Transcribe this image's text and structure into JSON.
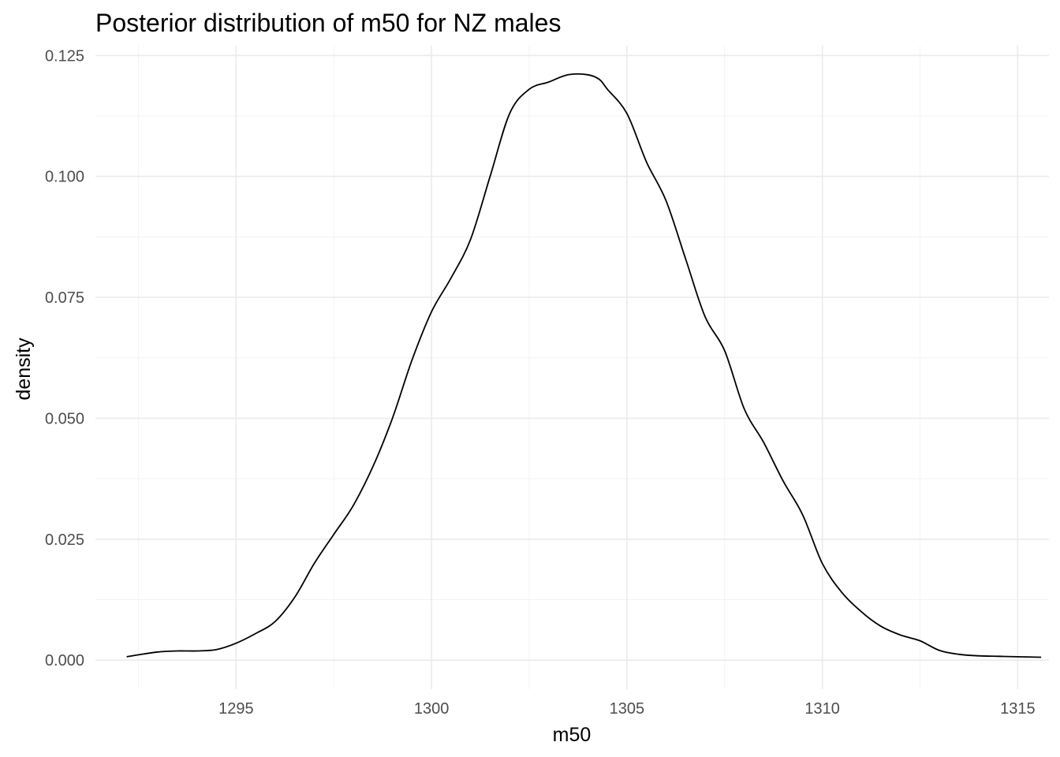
{
  "chart_data": {
    "type": "line",
    "title": "Posterior distribution of m50 for NZ males",
    "xlabel": "m50",
    "ylabel": "density",
    "xlim": [
      1291.4,
      1315.8
    ],
    "ylim": [
      -0.006,
      0.127
    ],
    "x_ticks": [
      1295,
      1300,
      1305,
      1310,
      1315
    ],
    "x_tick_labels": [
      "1295",
      "1300",
      "1305",
      "1310",
      "1315"
    ],
    "y_ticks": [
      0.0,
      0.025,
      0.05,
      0.075,
      0.1,
      0.125
    ],
    "y_tick_labels": [
      "0.000",
      "0.025",
      "0.050",
      "0.075",
      "0.100",
      "0.125"
    ],
    "grid": true,
    "series": [
      {
        "x": [
          1292.2,
          1292.5,
          1293.0,
          1293.5,
          1294.0,
          1294.5,
          1295.0,
          1295.5,
          1296.0,
          1296.5,
          1297.0,
          1297.5,
          1298.0,
          1298.5,
          1299.0,
          1299.5,
          1300.0,
          1300.5,
          1301.0,
          1301.5,
          1302.0,
          1302.5,
          1303.0,
          1303.5,
          1304.0,
          1304.3,
          1304.5,
          1305.0,
          1305.5,
          1306.0,
          1306.5,
          1307.0,
          1307.5,
          1308.0,
          1308.5,
          1309.0,
          1309.5,
          1310.0,
          1310.5,
          1311.0,
          1311.5,
          1312.0,
          1312.5,
          1313.0,
          1313.5,
          1314.0,
          1314.5,
          1315.0,
          1315.6
        ],
        "y": [
          0.0007,
          0.0011,
          0.0017,
          0.0019,
          0.0019,
          0.0022,
          0.0035,
          0.0055,
          0.008,
          0.013,
          0.02,
          0.026,
          0.032,
          0.04,
          0.05,
          0.062,
          0.072,
          0.079,
          0.087,
          0.1,
          0.113,
          0.118,
          0.1195,
          0.121,
          0.121,
          0.12,
          0.118,
          0.113,
          0.103,
          0.095,
          0.083,
          0.071,
          0.064,
          0.052,
          0.045,
          0.037,
          0.03,
          0.02,
          0.014,
          0.01,
          0.007,
          0.0052,
          0.004,
          0.002,
          0.0012,
          0.0009,
          0.0008,
          0.0007,
          0.0006
        ]
      }
    ]
  }
}
